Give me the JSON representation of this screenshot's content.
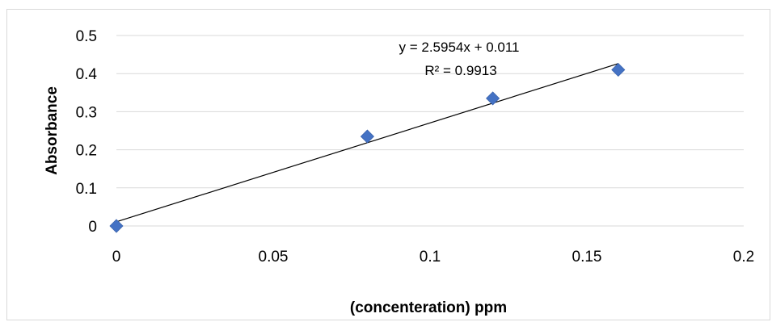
{
  "chart_data": {
    "type": "scatter",
    "title": "",
    "xlabel": "(concenteration) ppm",
    "ylabel": "Absorbance",
    "xlim": [
      0,
      0.2
    ],
    "ylim": [
      0,
      0.5
    ],
    "x_ticks": [
      "0",
      "0.05",
      "0.1",
      "0.15",
      "0.2"
    ],
    "y_ticks": [
      "0",
      "0.1",
      "0.2",
      "0.3",
      "0.4",
      "0.5"
    ],
    "grid": true,
    "legend": "none",
    "series": [
      {
        "points": [
          {
            "x": 0,
            "y": 0
          },
          {
            "x": 0.08,
            "y": 0.235
          },
          {
            "x": 0.12,
            "y": 0.335
          },
          {
            "x": 0.16,
            "y": 0.41
          }
        ],
        "marker": "diamond",
        "color": "#4472C4"
      }
    ],
    "trendline": {
      "type": "linear",
      "slope": 2.5954,
      "intercept": 0.011,
      "x_range": [
        0,
        0.16
      ],
      "color": "#000000",
      "equation_label": "y = 2.5954x + 0.011",
      "r2_label": "R² = 0.9913"
    }
  }
}
